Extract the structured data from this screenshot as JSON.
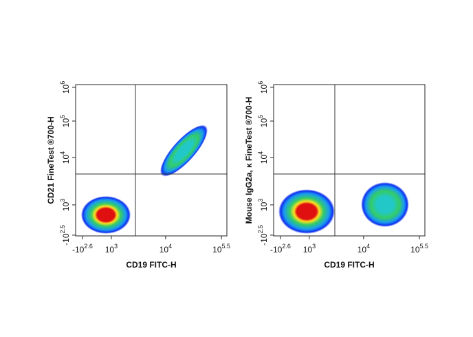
{
  "chart_data": [
    {
      "type": "flow-density",
      "xlabel": "CD19 FITC-H",
      "ylabel": "CD21 FineTest ®700-H",
      "xlim": [
        -1340,
        443000
      ],
      "ylim": [
        -358,
        1200000
      ],
      "xticks": [
        {
          "value": -398,
          "label": "-10",
          "sup": "2.6"
        },
        {
          "value": 1000,
          "label": "10",
          "sup": "3"
        },
        {
          "value": 10000,
          "label": "10",
          "sup": "4"
        },
        {
          "value": 316228,
          "label": "10",
          "sup": "5.5"
        }
      ],
      "yticks": [
        {
          "value": -316,
          "label": "-10",
          "sup": "2.5"
        },
        {
          "value": 1000,
          "label": "10",
          "sup": "3"
        },
        {
          "value": 10000,
          "label": "10",
          "sup": "4"
        },
        {
          "value": 100000,
          "label": "10",
          "sup": "5"
        },
        {
          "value": 1000000,
          "label": "10",
          "sup": "6"
        }
      ],
      "gates": {
        "x": 2780,
        "y": 4500
      },
      "populations": [
        {
          "x": [
            -510,
            2280
          ],
          "y": [
            -252,
            1540
          ],
          "color": "#e01010",
          "correlated": false
        },
        {
          "x": [
            8450,
            123000
          ],
          "y": [
            4190,
            73300
          ],
          "color": "#22c8c8",
          "correlated": true
        }
      ]
    },
    {
      "type": "flow-density",
      "xlabel": "CD19 FITC-H",
      "ylabel": "Mouse IgG2a, κ FineTest ®700-H",
      "xlim": [
        -1340,
        443000
      ],
      "ylim": [
        -358,
        1200000
      ],
      "xticks": [
        {
          "value": -398,
          "label": "-10",
          "sup": "2.6"
        },
        {
          "value": 1000,
          "label": "10",
          "sup": "3"
        },
        {
          "value": 10000,
          "label": "10",
          "sup": "4"
        },
        {
          "value": 316228,
          "label": "10",
          "sup": "5.5"
        }
      ],
      "yticks": [
        {
          "value": -316,
          "label": "-10",
          "sup": "2.5"
        },
        {
          "value": 1000,
          "label": "10",
          "sup": "3"
        },
        {
          "value": 10000,
          "label": "10",
          "sup": "4"
        },
        {
          "value": 100000,
          "label": "10",
          "sup": "5"
        },
        {
          "value": 1000000,
          "label": "10",
          "sup": "6"
        }
      ],
      "gates": {
        "x": 2950,
        "y": 4500
      },
      "populations": [
        {
          "x": [
            -570,
            2950
          ],
          "y": [
            -252,
            2140
          ],
          "color": "#e01010",
          "correlated": false
        },
        {
          "x": [
            8980,
            165000
          ],
          "y": [
            -59,
            3020
          ],
          "color": "#22c8c8",
          "correlated": false
        }
      ]
    }
  ]
}
